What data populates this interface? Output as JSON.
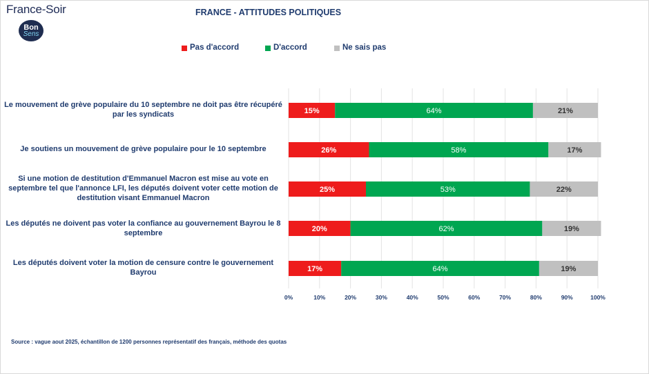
{
  "brand": {
    "name": "France-Soir",
    "logo_line1": "Bon",
    "logo_line2": "Sens"
  },
  "chart_data": {
    "type": "bar",
    "orientation": "horizontal",
    "stacked": true,
    "title": "FRANCE - ATTITUDES POLITIQUES",
    "xlim": [
      0,
      100
    ],
    "x_ticks": [
      "0%",
      "10%",
      "20%",
      "30%",
      "40%",
      "50%",
      "60%",
      "70%",
      "80%",
      "90%",
      "100%"
    ],
    "categories": [
      "Le mouvement de grève populaire du 10 septembre ne doit pas être récupéré par les syndicats",
      "Je soutiens un mouvement de grève populaire pour le 10 septembre",
      "Si une motion de destitution d'Emmanuel Macron est mise au vote en septembre tel que l'annonce LFI, les députés doivent voter cette motion de destitution visant Emmanuel Macron",
      "Les députés ne doivent pas voter la confiance au gouvernement Bayrou le 8 septembre",
      "Les députés doivent voter la motion de censure contre le gouvernement Bayrou"
    ],
    "series": [
      {
        "name": "Pas d'accord",
        "color": "#ee1c1c",
        "values": [
          15,
          26,
          25,
          20,
          17
        ],
        "labels": [
          "15%",
          "26%",
          "25%",
          "20%",
          "17%"
        ]
      },
      {
        "name": "D'accord",
        "color": "#00a651",
        "values": [
          64,
          58,
          53,
          62,
          64
        ],
        "labels": [
          "64%",
          "58%",
          "53%",
          "62%",
          "64%"
        ]
      },
      {
        "name": "Ne sais pas",
        "color": "#c0c0c0",
        "values": [
          21,
          17,
          22,
          19,
          19
        ],
        "labels": [
          "21%",
          "17%",
          "22%",
          "19%",
          "19%"
        ]
      }
    ],
    "legend_position": "top",
    "grid": true
  },
  "source": "Source : vague aout 2025, échantillon de 1200 personnes représentatif des français, méthode des quotas"
}
